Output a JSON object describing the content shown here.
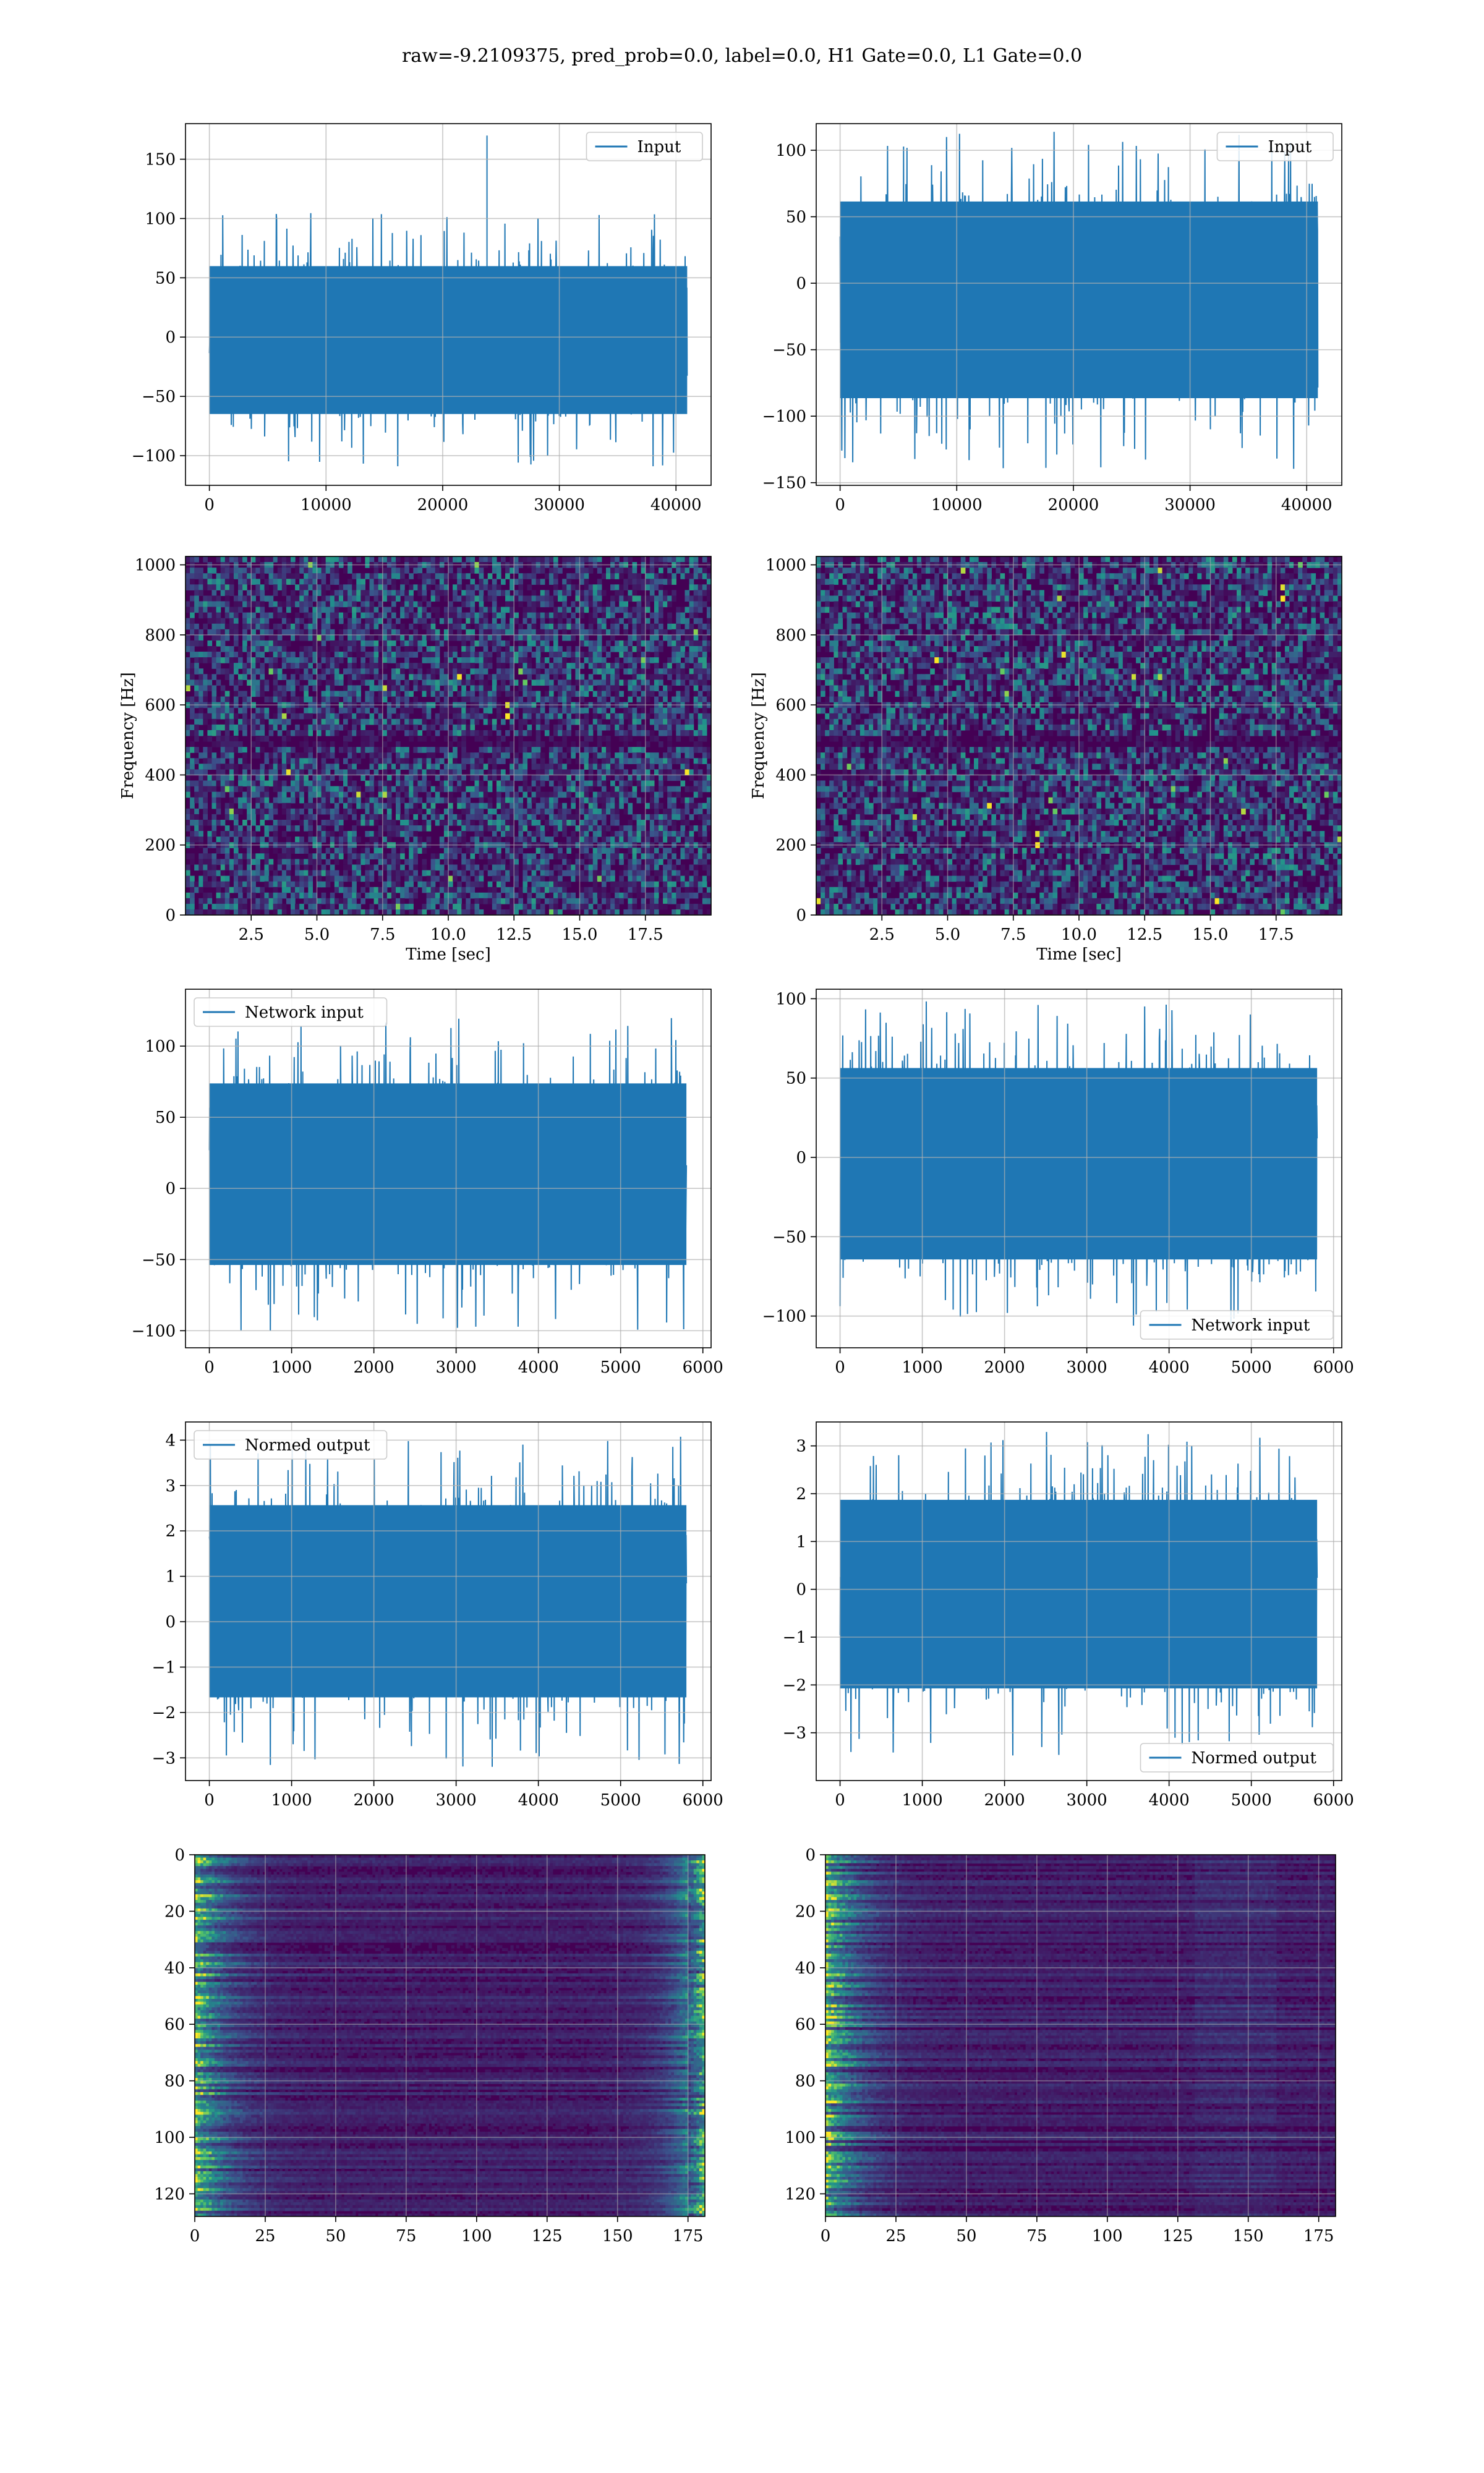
{
  "figure": {
    "suptitle": "raw=-9.2109375, pred_prob=0.0, label=0.0, H1 Gate=0.0, L1 Gate=0.0"
  },
  "colors": {
    "series": "#1f77b4",
    "grid": "#b0b0b0",
    "viridis_dark": "#440154",
    "viridis_mid": "#21918c",
    "viridis_bright": "#fde725"
  },
  "chart_data": [
    {
      "id": "input-h1",
      "type": "line",
      "xlabel": "",
      "ylabel": "",
      "legend": "Input",
      "legend_loc": "upper right",
      "grid": true,
      "xlim": [
        -2048,
        43008
      ],
      "ylim": [
        -125,
        180
      ],
      "xticks": [
        0,
        10000,
        20000,
        30000,
        40000
      ],
      "xtick_labels": [
        "0",
        "10000",
        "20000",
        "30000",
        "40000"
      ],
      "yticks": [
        -100,
        -50,
        0,
        50,
        100,
        150
      ],
      "ytick_labels": [
        "−100",
        "−50",
        "0",
        "50",
        "100",
        "150"
      ],
      "n_points": 40960,
      "x_range": [
        0,
        40959
      ],
      "env_max": 105,
      "env_min": -110,
      "spike": [
        23800,
        170
      ]
    },
    {
      "id": "input-l1",
      "type": "line",
      "xlabel": "",
      "ylabel": "",
      "legend": "Input",
      "legend_loc": "upper right",
      "grid": true,
      "xlim": [
        -2048,
        43008
      ],
      "ylim": [
        -152,
        120
      ],
      "xticks": [
        0,
        10000,
        20000,
        30000,
        40000
      ],
      "xtick_labels": [
        "0",
        "10000",
        "20000",
        "30000",
        "40000"
      ],
      "yticks": [
        -150,
        -100,
        -50,
        0,
        50,
        100
      ],
      "ytick_labels": [
        "−150",
        "−100",
        "−50",
        "0",
        "50",
        "100"
      ],
      "n_points": 40960,
      "x_range": [
        0,
        40959
      ],
      "env_max": 115,
      "env_min": -140
    },
    {
      "id": "spectrogram-h1",
      "type": "heatmap",
      "xlabel": "Time [sec]",
      "ylabel": "Frequency [Hz]",
      "grid": true,
      "colormap": "viridis",
      "xlim": [
        0,
        20
      ],
      "ylim": [
        0,
        1024
      ],
      "xticks": [
        2.5,
        5.0,
        7.5,
        10.0,
        12.5,
        15.0,
        17.5
      ],
      "xtick_labels": [
        "2.5",
        "5.0",
        "7.5",
        "10.0",
        "12.5",
        "15.0",
        "17.5"
      ],
      "yticks": [
        0,
        200,
        400,
        600,
        800,
        1000
      ],
      "ytick_labels": [
        "0",
        "200",
        "400",
        "600",
        "800",
        "1000"
      ],
      "dark_band_hz": 500
    },
    {
      "id": "spectrogram-l1",
      "type": "heatmap",
      "xlabel": "Time [sec]",
      "ylabel": "Frequency [Hz]",
      "grid": true,
      "colormap": "viridis",
      "xlim": [
        0,
        20
      ],
      "ylim": [
        0,
        1024
      ],
      "xticks": [
        2.5,
        5.0,
        7.5,
        10.0,
        12.5,
        15.0,
        17.5
      ],
      "xtick_labels": [
        "2.5",
        "5.0",
        "7.5",
        "10.0",
        "12.5",
        "15.0",
        "17.5"
      ],
      "yticks": [
        0,
        200,
        400,
        600,
        800,
        1000
      ],
      "ytick_labels": [
        "0",
        "200",
        "400",
        "600",
        "800",
        "1000"
      ],
      "dark_band_hz": 500
    },
    {
      "id": "network-input-h1",
      "type": "line",
      "xlabel": "",
      "ylabel": "",
      "legend": "Network input",
      "legend_loc": "upper left",
      "grid": true,
      "xlim": [
        -290,
        6100
      ],
      "ylim": [
        -112,
        140
      ],
      "xticks": [
        0,
        1000,
        2000,
        3000,
        4000,
        5000,
        6000
      ],
      "xtick_labels": [
        "0",
        "1000",
        "2000",
        "3000",
        "4000",
        "5000",
        "6000"
      ],
      "yticks": [
        -100,
        -50,
        0,
        50,
        100
      ],
      "ytick_labels": [
        "−100",
        "−50",
        "0",
        "50",
        "100"
      ],
      "n_points": 5800,
      "x_range": [
        0,
        5800
      ],
      "env_max": 120,
      "env_min": -100
    },
    {
      "id": "network-input-l1",
      "type": "line",
      "xlabel": "",
      "ylabel": "",
      "legend": "Network input",
      "legend_loc": "lower right",
      "grid": true,
      "xlim": [
        -290,
        6100
      ],
      "ylim": [
        -120,
        106
      ],
      "xticks": [
        0,
        1000,
        2000,
        3000,
        4000,
        5000,
        6000
      ],
      "xtick_labels": [
        "0",
        "1000",
        "2000",
        "3000",
        "4000",
        "5000",
        "6000"
      ],
      "yticks": [
        -100,
        -50,
        0,
        50,
        100
      ],
      "ytick_labels": [
        "−100",
        "−50",
        "0",
        "50",
        "100"
      ],
      "n_points": 5800,
      "x_range": [
        0,
        5800
      ],
      "env_max": 100,
      "env_min": -108
    },
    {
      "id": "normed-output-h1",
      "type": "line",
      "xlabel": "",
      "ylabel": "",
      "legend": "Normed output",
      "legend_loc": "upper left",
      "grid": true,
      "xlim": [
        -290,
        6100
      ],
      "ylim": [
        -3.5,
        4.4
      ],
      "xticks": [
        0,
        1000,
        2000,
        3000,
        4000,
        5000,
        6000
      ],
      "xtick_labels": [
        "0",
        "1000",
        "2000",
        "3000",
        "4000",
        "5000",
        "6000"
      ],
      "yticks": [
        -3,
        -2,
        -1,
        0,
        1,
        2,
        3,
        4
      ],
      "ytick_labels": [
        "−3",
        "−2",
        "−1",
        "0",
        "1",
        "2",
        "3",
        "4"
      ],
      "n_points": 5800,
      "x_range": [
        0,
        5800
      ],
      "env_max": 4.1,
      "env_min": -3.2
    },
    {
      "id": "normed-output-l1",
      "type": "line",
      "xlabel": "",
      "ylabel": "",
      "legend": "Normed output",
      "legend_loc": "lower right",
      "grid": true,
      "xlim": [
        -290,
        6100
      ],
      "ylim": [
        -4.0,
        3.5
      ],
      "xticks": [
        0,
        1000,
        2000,
        3000,
        4000,
        5000,
        6000
      ],
      "xtick_labels": [
        "0",
        "1000",
        "2000",
        "3000",
        "4000",
        "5000",
        "6000"
      ],
      "yticks": [
        -3,
        -2,
        -1,
        0,
        1,
        2,
        3
      ],
      "ytick_labels": [
        "−3",
        "−2",
        "−1",
        "0",
        "1",
        "2",
        "3"
      ],
      "n_points": 5800,
      "x_range": [
        0,
        5800
      ],
      "env_max": 3.3,
      "env_min": -3.5
    },
    {
      "id": "feature-map-h1",
      "type": "heatmap",
      "xlabel": "",
      "ylabel": "",
      "grid": true,
      "colormap": "viridis",
      "xlim": [
        0,
        181
      ],
      "ylim": [
        128,
        0
      ],
      "xticks": [
        0,
        25,
        50,
        75,
        100,
        125,
        150,
        175
      ],
      "xtick_labels": [
        "0",
        "25",
        "50",
        "75",
        "100",
        "125",
        "150",
        "175"
      ],
      "yticks": [
        0,
        20,
        40,
        60,
        80,
        100,
        120
      ],
      "ytick_labels": [
        "0",
        "20",
        "40",
        "60",
        "80",
        "100",
        "120"
      ],
      "bright_edges": "left and right"
    },
    {
      "id": "feature-map-l1",
      "type": "heatmap",
      "xlabel": "",
      "ylabel": "",
      "grid": true,
      "colormap": "viridis",
      "xlim": [
        0,
        181
      ],
      "ylim": [
        128,
        0
      ],
      "xticks": [
        0,
        25,
        50,
        75,
        100,
        125,
        150,
        175
      ],
      "xtick_labels": [
        "0",
        "25",
        "50",
        "75",
        "100",
        "125",
        "150",
        "175"
      ],
      "yticks": [
        0,
        20,
        40,
        60,
        80,
        100,
        120
      ],
      "ytick_labels": [
        "0",
        "20",
        "40",
        "60",
        "80",
        "100",
        "120"
      ],
      "bright_edges": "left"
    }
  ]
}
